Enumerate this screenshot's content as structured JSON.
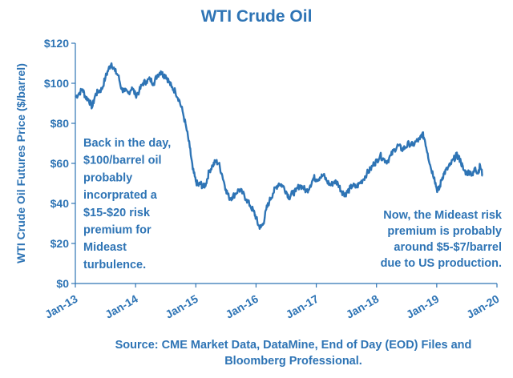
{
  "chart_data": {
    "type": "line",
    "title": "WTI Crude Oil",
    "ylabel": "WTI Crude Oil Futures Price ($/barrel)",
    "xlabel": "",
    "ylim": [
      0,
      120
    ],
    "yticks": [
      0,
      20,
      40,
      60,
      80,
      100,
      120
    ],
    "ytick_labels": [
      "$0",
      "$20",
      "$40",
      "$60",
      "$80",
      "$100",
      "$120"
    ],
    "xlim": [
      2013.0,
      2020.0
    ],
    "xticks": [
      2013,
      2014,
      2015,
      2016,
      2017,
      2018,
      2019,
      2020
    ],
    "xtick_labels": [
      "Jan-13",
      "Jan-14",
      "Jan-15",
      "Jan-16",
      "Jan-17",
      "Jan-18",
      "Jan-19",
      "Jan-20"
    ],
    "grid": false,
    "legend": "none",
    "series_color": "#2e74b5",
    "series": [
      {
        "x": [
          2013.0,
          2013.06,
          2013.12,
          2013.17,
          2013.22,
          2013.28,
          2013.33,
          2013.38,
          2013.44,
          2013.5,
          2013.55,
          2013.6,
          2013.66,
          2013.71,
          2013.77,
          2013.82,
          2013.88,
          2013.94,
          2014.0,
          2014.06,
          2014.12,
          2014.18,
          2014.24,
          2014.3,
          2014.36,
          2014.42,
          2014.46,
          2014.5,
          2014.55,
          2014.6,
          2014.66,
          2014.72,
          2014.78,
          2014.84,
          2014.9,
          2014.95,
          2015.0,
          2015.04,
          2015.08,
          2015.12,
          2015.17,
          2015.22,
          2015.28,
          2015.33,
          2015.38,
          2015.44,
          2015.5,
          2015.55,
          2015.6,
          2015.66,
          2015.72,
          2015.78,
          2015.84,
          2015.9,
          2015.96,
          2016.0,
          2016.04,
          2016.08,
          2016.12,
          2016.17,
          2016.22,
          2016.28,
          2016.33,
          2016.38,
          2016.44,
          2016.5,
          2016.55,
          2016.6,
          2016.66,
          2016.72,
          2016.78,
          2016.84,
          2016.9,
          2016.96,
          2017.0,
          2017.06,
          2017.12,
          2017.18,
          2017.24,
          2017.3,
          2017.36,
          2017.42,
          2017.46,
          2017.5,
          2017.55,
          2017.6,
          2017.66,
          2017.72,
          2017.78,
          2017.84,
          2017.9,
          2017.96,
          2018.0,
          2018.06,
          2018.12,
          2018.18,
          2018.24,
          2018.3,
          2018.36,
          2018.42,
          2018.48,
          2018.54,
          2018.6,
          2018.66,
          2018.72,
          2018.76,
          2018.8,
          2018.85,
          2018.9,
          2018.96,
          2019.0,
          2019.04,
          2019.08,
          2019.12,
          2019.17,
          2019.22,
          2019.28,
          2019.33,
          2019.36,
          2019.4,
          2019.44,
          2019.5,
          2019.55,
          2019.6,
          2019.64,
          2019.68,
          2019.72,
          2019.76
        ],
        "y": [
          93,
          95,
          97,
          93,
          92,
          88,
          94,
          96,
          97,
          103,
          107,
          110,
          106,
          104,
          97,
          96,
          95,
          98,
          94,
          96,
          100,
          101,
          102,
          100,
          104,
          106,
          104,
          104,
          101,
          98,
          96,
          92,
          86,
          78,
          68,
          57,
          51,
          49,
          50,
          48,
          50,
          56,
          59,
          61,
          60,
          54,
          47,
          43,
          43,
          45,
          47,
          45,
          42,
          39,
          36,
          33,
          29,
          28,
          30,
          37,
          41,
          45,
          48,
          50,
          49,
          46,
          43,
          45,
          46,
          49,
          48,
          46,
          49,
          53,
          52,
          53,
          54,
          51,
          49,
          51,
          50,
          46,
          45,
          45,
          47,
          49,
          48,
          50,
          52,
          55,
          57,
          60,
          61,
          64,
          62,
          61,
          64,
          67,
          69,
          67,
          68,
          70,
          69,
          71,
          72,
          75,
          72,
          65,
          58,
          53,
          47,
          47,
          52,
          55,
          57,
          59,
          62,
          64,
          63,
          61,
          57,
          55,
          56,
          54,
          58,
          55,
          59,
          54
        ]
      }
    ],
    "annotations": [
      {
        "lines": [
          "Back in the day,",
          "$100/barrel oil",
          "probably",
          "incorprated a",
          "$15-$20 risk",
          "premium for",
          "Mideast",
          "turbulence."
        ]
      },
      {
        "lines": [
          "Now, the Mideast risk",
          "premium is probably",
          "around $5-$7/barrel",
          "due to US production."
        ]
      }
    ],
    "source": [
      "Source:  CME Market Data, DataMine, End of Day (EOD) Files and",
      "Bloomberg Professional."
    ]
  }
}
